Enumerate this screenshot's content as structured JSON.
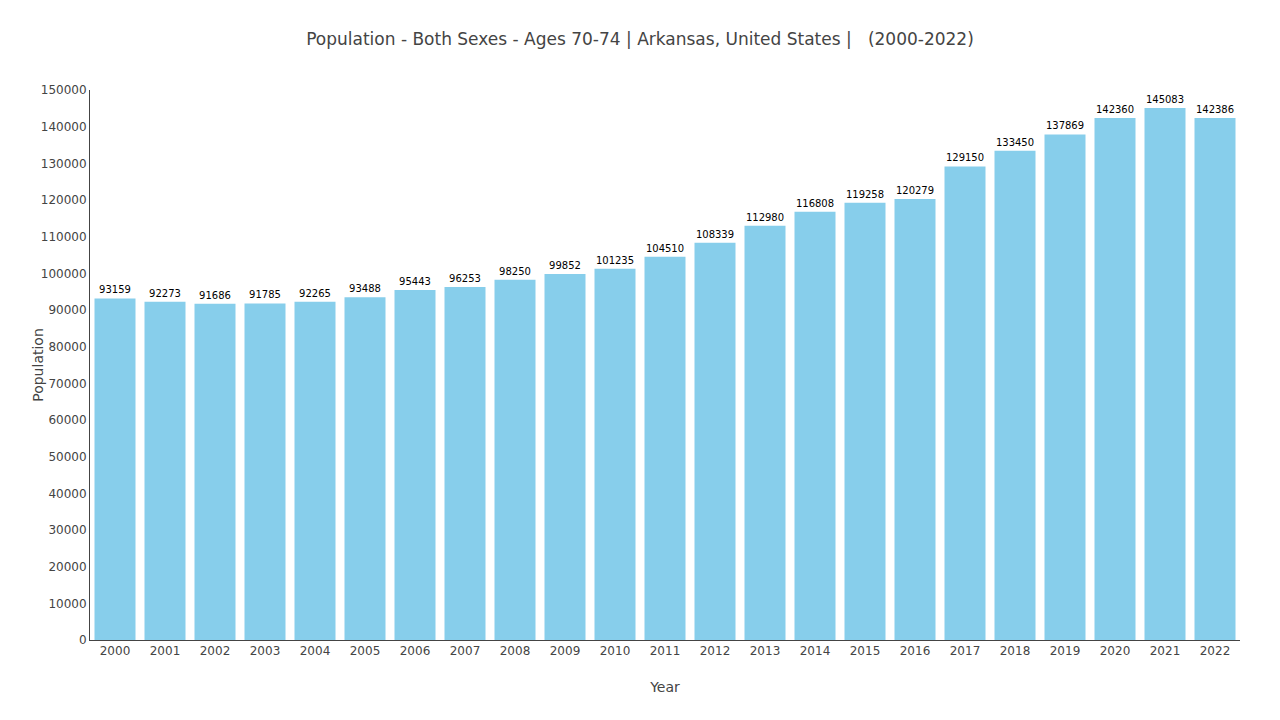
{
  "chart_data": {
    "type": "bar",
    "title": "Population - Both Sexes - Ages 70-74 | Arkansas, United States |   (2000-2022)",
    "xlabel": "Year",
    "ylabel": "Population",
    "categories": [
      "2000",
      "2001",
      "2002",
      "2003",
      "2004",
      "2005",
      "2006",
      "2007",
      "2008",
      "2009",
      "2010",
      "2011",
      "2012",
      "2013",
      "2014",
      "2015",
      "2016",
      "2017",
      "2018",
      "2019",
      "2020",
      "2021",
      "2022"
    ],
    "values": [
      93159,
      92273,
      91686,
      91785,
      92265,
      93488,
      95443,
      96253,
      98250,
      99852,
      101235,
      104510,
      108339,
      112980,
      116808,
      119258,
      120279,
      129150,
      133450,
      137869,
      142360,
      145083,
      142386
    ],
    "color": "#87ceeb",
    "ylim": [
      0,
      150000
    ],
    "yticks": [
      0,
      10000,
      20000,
      30000,
      40000,
      50000,
      60000,
      70000,
      80000,
      90000,
      100000,
      110000,
      120000,
      130000,
      140000,
      150000
    ],
    "grid": false,
    "data_labels": true
  }
}
